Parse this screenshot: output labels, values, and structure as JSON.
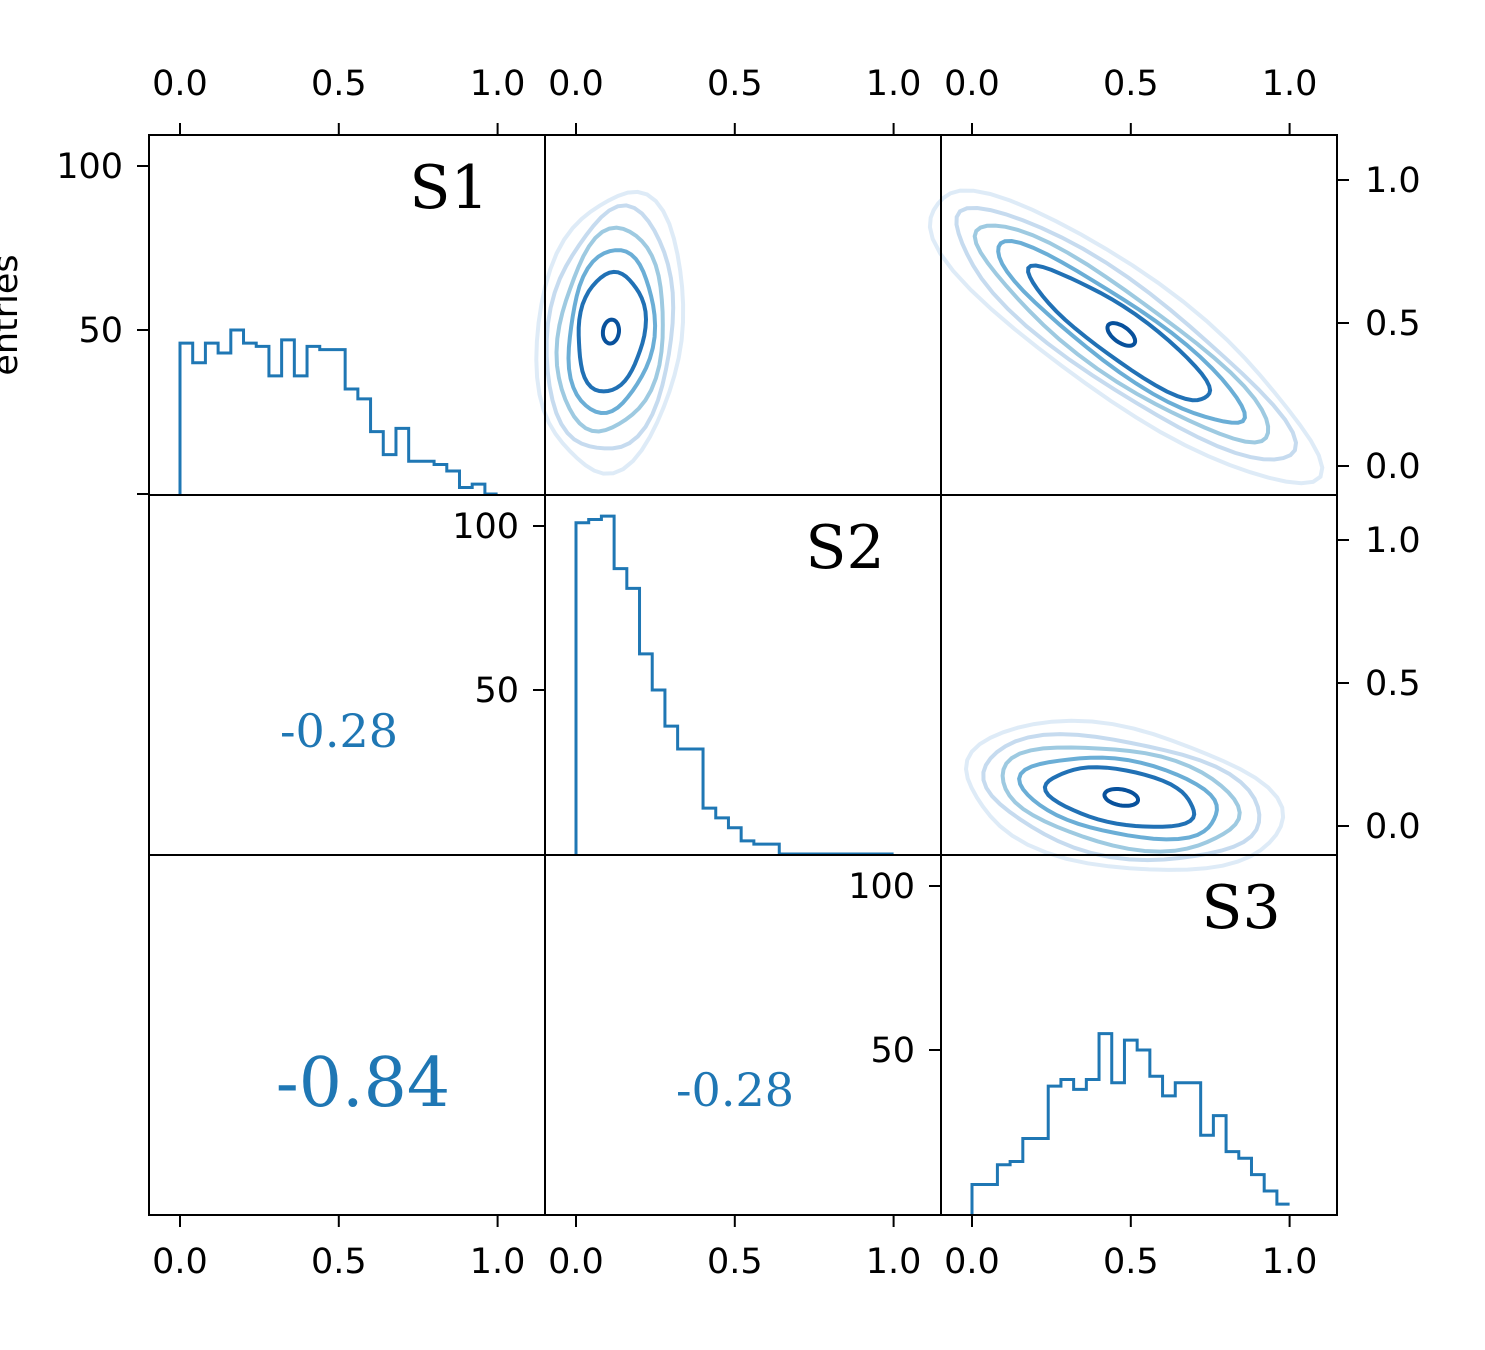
{
  "chart_data": {
    "type": "corner-plot",
    "ylabel": "entries",
    "variables": [
      "S1",
      "S2",
      "S3"
    ],
    "axis_ticks": [
      "0.0",
      "0.5",
      "1.0"
    ],
    "count_ticks": [
      "50",
      "100"
    ],
    "grid": false,
    "xlim": [
      -0.1,
      1.15
    ],
    "ylim_counts": [
      0,
      110
    ],
    "ylim_values": [
      -0.1,
      1.15
    ],
    "colors": {
      "line": "#1f77b4",
      "contours": [
        "#deebf7",
        "#c6dbef",
        "#9ecae1",
        "#6baed6",
        "#4292c6",
        "#2171b5",
        "#08519c"
      ]
    },
    "correlations": [
      {
        "pair": [
          "S1",
          "S2"
        ],
        "label": "-0.28"
      },
      {
        "pair": [
          "S1",
          "S3"
        ],
        "label": "-0.84"
      },
      {
        "pair": [
          "S2",
          "S3"
        ],
        "label": "-0.28"
      }
    ],
    "histograms": [
      {
        "variable": "S1",
        "bin_width": 0.04,
        "x_start": 0.0,
        "values": [
          46,
          40,
          46,
          43,
          50,
          46,
          45,
          36,
          47,
          36,
          45,
          44,
          44,
          32,
          29,
          19,
          12,
          20,
          10,
          10,
          9,
          7,
          2,
          3,
          0
        ]
      },
      {
        "variable": "S2",
        "bin_width": 0.04,
        "x_start": 0.0,
        "values": [
          101,
          102,
          103,
          87,
          81,
          61,
          50,
          39,
          32,
          32,
          14,
          11,
          8,
          4,
          3,
          3,
          0,
          0,
          0,
          0,
          0,
          0,
          0,
          0,
          0
        ]
      },
      {
        "variable": "S3",
        "bin_width": 0.04,
        "x_start": 0.0,
        "values": [
          9,
          9,
          15,
          16,
          23,
          23,
          39,
          41,
          38,
          41,
          55,
          40,
          53,
          50,
          42,
          36,
          40,
          40,
          24,
          30,
          19,
          17,
          12,
          7,
          3
        ]
      }
    ],
    "contour_plots": [
      {
        "x": "S2",
        "y": "S1",
        "mode": {
          "x": 0.11,
          "y": 0.47
        }
      },
      {
        "x": "S3",
        "y": "S1",
        "mode": {
          "x": 0.47,
          "y": 0.46
        }
      },
      {
        "x": "S3",
        "y": "S2",
        "mode": {
          "x": 0.47,
          "y": 0.1
        }
      }
    ]
  }
}
